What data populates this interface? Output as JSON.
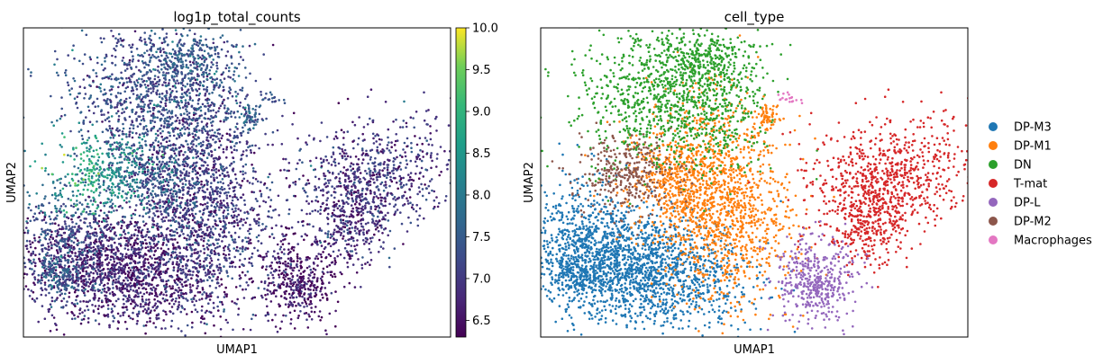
{
  "chart_data": [
    {
      "type": "scatter",
      "title": "log1p_total_counts",
      "xlabel": "UMAP1",
      "ylabel": "UMAP2",
      "grid": false,
      "colorbar": {
        "colormap": "viridis",
        "range": [
          6.3,
          10.0
        ],
        "ticks": [
          "6.5",
          "7.0",
          "7.5",
          "8.0",
          "8.5",
          "9.0",
          "9.5",
          "10.0"
        ]
      },
      "regions": [
        {
          "name": "upper-left high-count band",
          "value": 8.2
        },
        {
          "name": "central mass",
          "value": 7.1
        },
        {
          "name": "lower-left mass",
          "value": 6.7
        },
        {
          "name": "right cluster",
          "value": 6.9
        },
        {
          "name": "lower-right cluster",
          "value": 6.5
        },
        {
          "name": "small top cluster",
          "value": 7.3
        }
      ]
    },
    {
      "type": "scatter",
      "title": "cell_type",
      "xlabel": "UMAP1",
      "ylabel": "UMAP2",
      "grid": false,
      "legend_position": "right",
      "series": [
        {
          "name": "DP-M3",
          "color": "#1f77b4"
        },
        {
          "name": "DP-M1",
          "color": "#ff7f0e"
        },
        {
          "name": "DN",
          "color": "#2ca02c"
        },
        {
          "name": "T-mat",
          "color": "#d62728"
        },
        {
          "name": "DP-L",
          "color": "#9467bd"
        },
        {
          "name": "DP-M2",
          "color": "#8c564b"
        },
        {
          "name": "Macrophages",
          "color": "#e377c2"
        }
      ]
    }
  ]
}
